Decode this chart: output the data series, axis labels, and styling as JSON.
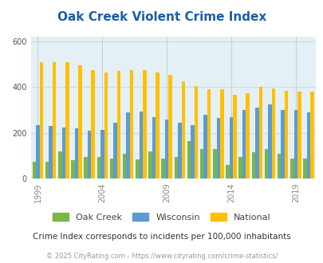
{
  "title": "Oak Creek Violent Crime Index",
  "years": [
    1999,
    2000,
    2001,
    2002,
    2003,
    2004,
    2005,
    2006,
    2007,
    2008,
    2009,
    2010,
    2011,
    2012,
    2013,
    2014,
    2015,
    2016,
    2017,
    2018,
    2019,
    2020
  ],
  "oak_creek": [
    75,
    75,
    120,
    80,
    95,
    95,
    90,
    110,
    85,
    120,
    90,
    95,
    165,
    130,
    130,
    60,
    95,
    115,
    130,
    110,
    90,
    90
  ],
  "wisconsin": [
    235,
    230,
    225,
    220,
    210,
    215,
    245,
    290,
    295,
    270,
    260,
    245,
    235,
    280,
    265,
    270,
    300,
    310,
    325,
    300,
    300,
    290
  ],
  "national": [
    510,
    510,
    510,
    495,
    475,
    465,
    470,
    475,
    475,
    465,
    455,
    425,
    405,
    390,
    390,
    365,
    375,
    400,
    395,
    385,
    380,
    380
  ],
  "oak_creek_color": "#7ab648",
  "wisconsin_color": "#5b9bd5",
  "national_color": "#ffc000",
  "bg_color": "#e4f0f5",
  "title_color": "#1a5fa8",
  "subtitle_text": "Crime Index corresponds to incidents per 100,000 inhabitants",
  "footer_text": "© 2025 CityRating.com - https://www.cityrating.com/crime-statistics/",
  "ylim": [
    0,
    620
  ],
  "yticks": [
    0,
    200,
    400,
    600
  ],
  "bar_width": 0.28,
  "tick_years": [
    1999,
    2004,
    2009,
    2014,
    2019
  ],
  "subtitle_color": "#333333",
  "footer_color": "#999999",
  "grid_color": "#c8dde8",
  "vgrid_color": "#c0d4e0"
}
